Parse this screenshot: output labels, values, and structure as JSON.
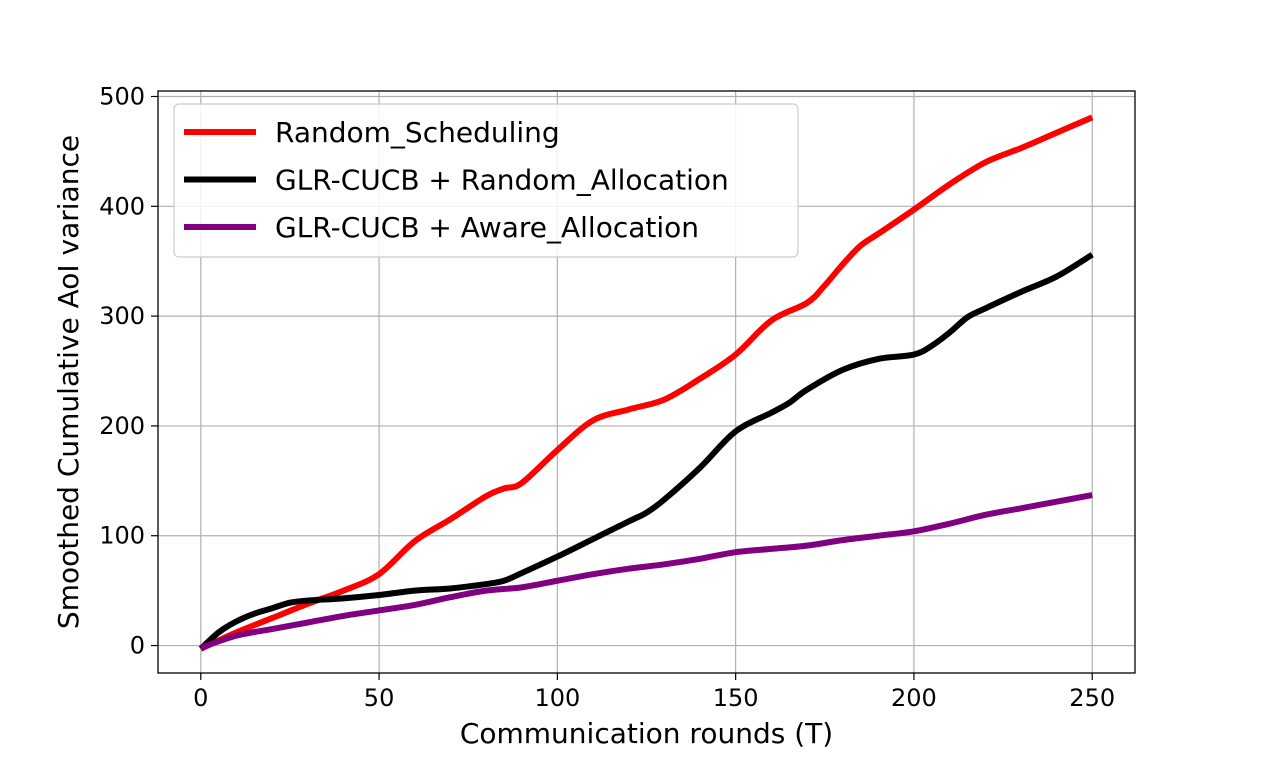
{
  "chart_data": {
    "type": "line",
    "title": "",
    "xlabel": "Communication rounds (T)",
    "ylabel": "Smoothed Cumulative AoI variance",
    "xlim": [
      -12,
      262
    ],
    "ylim": [
      -25,
      505
    ],
    "xticks": [
      0,
      50,
      100,
      150,
      200,
      250
    ],
    "yticks": [
      0,
      100,
      200,
      300,
      400,
      500
    ],
    "grid": true,
    "legend_position": "top-left",
    "series": [
      {
        "name": "Random_Scheduling",
        "color": "#ff0000",
        "x": [
          0,
          10,
          20,
          30,
          40,
          50,
          60,
          70,
          80,
          85,
          90,
          100,
          110,
          120,
          130,
          140,
          150,
          160,
          170,
          175,
          180,
          185,
          190,
          200,
          210,
          220,
          230,
          240,
          250
        ],
        "y": [
          -3,
          12,
          25,
          38,
          50,
          65,
          95,
          115,
          136,
          143,
          148,
          178,
          205,
          215,
          224,
          243,
          265,
          296,
          312,
          328,
          347,
          364,
          375,
          397,
          420,
          440,
          453,
          467,
          481
        ]
      },
      {
        "name": "GLR-CUCB + Random_Allocation",
        "color": "#000000",
        "x": [
          0,
          5,
          10,
          15,
          20,
          25,
          30,
          40,
          50,
          60,
          70,
          80,
          85,
          90,
          100,
          110,
          120,
          125,
          130,
          140,
          150,
          160,
          165,
          170,
          180,
          190,
          200,
          205,
          210,
          215,
          220,
          230,
          240,
          250
        ],
        "y": [
          -3,
          12,
          22,
          29,
          34,
          39,
          41,
          43,
          46,
          50,
          52,
          56,
          59,
          66,
          81,
          97,
          113,
          121,
          133,
          162,
          195,
          212,
          221,
          233,
          251,
          261,
          265,
          273,
          285,
          299,
          307,
          322,
          336,
          356
        ]
      },
      {
        "name": "GLR-CUCB + Aware_Allocation",
        "color": "#800080",
        "x": [
          0,
          10,
          20,
          30,
          40,
          50,
          60,
          70,
          80,
          90,
          100,
          110,
          120,
          130,
          140,
          150,
          160,
          170,
          180,
          190,
          200,
          210,
          220,
          230,
          240,
          250
        ],
        "y": [
          -2,
          9,
          15,
          21,
          27,
          32,
          37,
          44,
          50,
          53,
          59,
          65,
          70,
          74,
          79,
          85,
          88,
          91,
          96,
          100,
          104,
          111,
          119,
          125,
          131,
          137
        ]
      }
    ]
  }
}
